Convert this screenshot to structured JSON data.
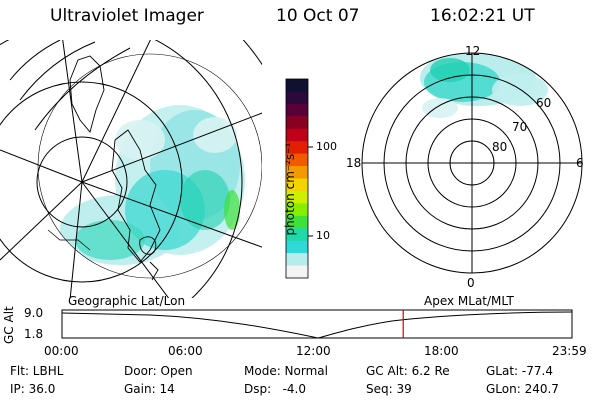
{
  "header": {
    "instrument": "Ultraviolet Imager",
    "date": "10 Oct 07",
    "time": "16:02:21 UT"
  },
  "colorbar": {
    "unit_label": "photon cm⁻²s⁻¹",
    "ticks": [
      "100",
      "10"
    ],
    "colors": [
      "#101030",
      "#2a0a3a",
      "#5a0038",
      "#8a0020",
      "#c00018",
      "#e02000",
      "#f05a00",
      "#f49a00",
      "#f2d400",
      "#cdf000",
      "#88ee00",
      "#3ee03a",
      "#20d8a8",
      "#30d8d8",
      "#b8ecec",
      "#f4f4f4"
    ]
  },
  "left_map": {
    "label": "Geographic Lat/Lon"
  },
  "right_map": {
    "label": "Apex MLat/MLT",
    "mlt_labels": {
      "top": "12",
      "left": "18",
      "right": "6",
      "bottom": "0"
    },
    "lat_labels": [
      "60",
      "70",
      "80"
    ]
  },
  "timeline": {
    "axis_label": "GC Alt",
    "y_ticks": [
      "9.0",
      "1.8"
    ],
    "x_ticks": [
      "00:00",
      "06:00",
      "12:00",
      "18:00",
      "23:59"
    ],
    "current_time_fraction": 0.669
  },
  "info": {
    "flt": "Flt: LBHL",
    "ip": "IP: 36.0",
    "door": "Door: Open",
    "gain": "Gain: 14",
    "mode": "Mode: Normal",
    "dsp": "Dsp:   -4.0",
    "gc_alt": "GC Alt: 6.2 Re",
    "seq": "Seq: 39",
    "glat": "GLat: -77.4",
    "glon": "GLon: 240.7"
  }
}
